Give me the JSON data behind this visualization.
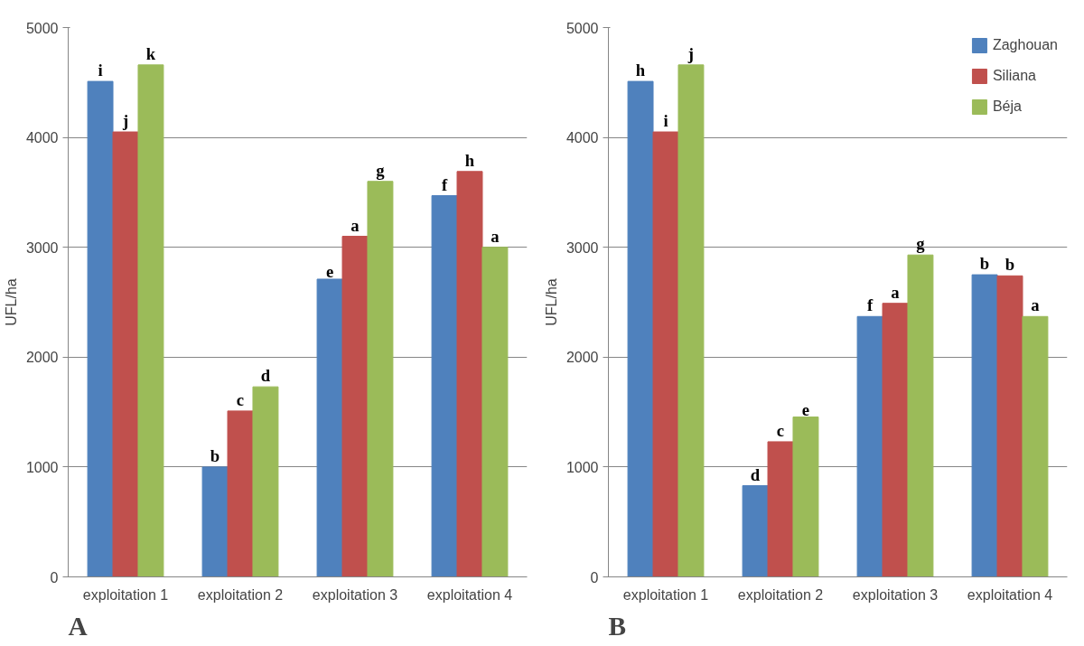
{
  "chart_data": [
    {
      "type": "bar",
      "ylabel": "UFL/ha",
      "categories": [
        "exploitation 1",
        "exploitation 2",
        "exploitation 3",
        "exploitation 4"
      ],
      "ylim": [
        0,
        5000
      ],
      "yticks": [
        0,
        1000,
        2000,
        3000,
        4000,
        5000
      ],
      "grid": "y",
      "legend": false,
      "annotations": [
        "A"
      ],
      "series": [
        {
          "color": "#4f81bd",
          "values": [
            4510,
            1000,
            2710,
            3470
          ],
          "value_labels": [
            "i",
            "b",
            "e",
            "f"
          ]
        },
        {
          "color": "#c0504d",
          "values": [
            4050,
            1510,
            3100,
            3690
          ],
          "value_labels": [
            "j",
            "c",
            "a",
            "h"
          ]
        },
        {
          "color": "#9bbb59",
          "values": [
            4660,
            1730,
            3600,
            3000
          ],
          "value_labels": [
            "k",
            "d",
            "g",
            "a"
          ]
        }
      ]
    },
    {
      "type": "bar",
      "ylabel": "UFL/ha",
      "categories": [
        "exploitation 1",
        "exploitation 2",
        "exploitation 3",
        "exploitation 4"
      ],
      "ylim": [
        0,
        5000
      ],
      "yticks": [
        0,
        1000,
        2000,
        3000,
        4000,
        5000
      ],
      "grid": "y",
      "legend": "top right",
      "annotations": [
        "B"
      ],
      "series": [
        {
          "name": "Zaghouan",
          "color": "#4f81bd",
          "values": [
            4510,
            830,
            2370,
            2750
          ],
          "value_labels": [
            "h",
            "d",
            "f",
            "b"
          ]
        },
        {
          "name": "Siliana",
          "color": "#c0504d",
          "values": [
            4050,
            1230,
            2490,
            2740
          ],
          "value_labels": [
            "i",
            "c",
            "a",
            "b"
          ]
        },
        {
          "name": "Béja",
          "color": "#9bbb59",
          "values": [
            4660,
            1455,
            2930,
            2370
          ],
          "value_labels": [
            "j",
            "e",
            "g",
            "a"
          ]
        }
      ]
    }
  ]
}
